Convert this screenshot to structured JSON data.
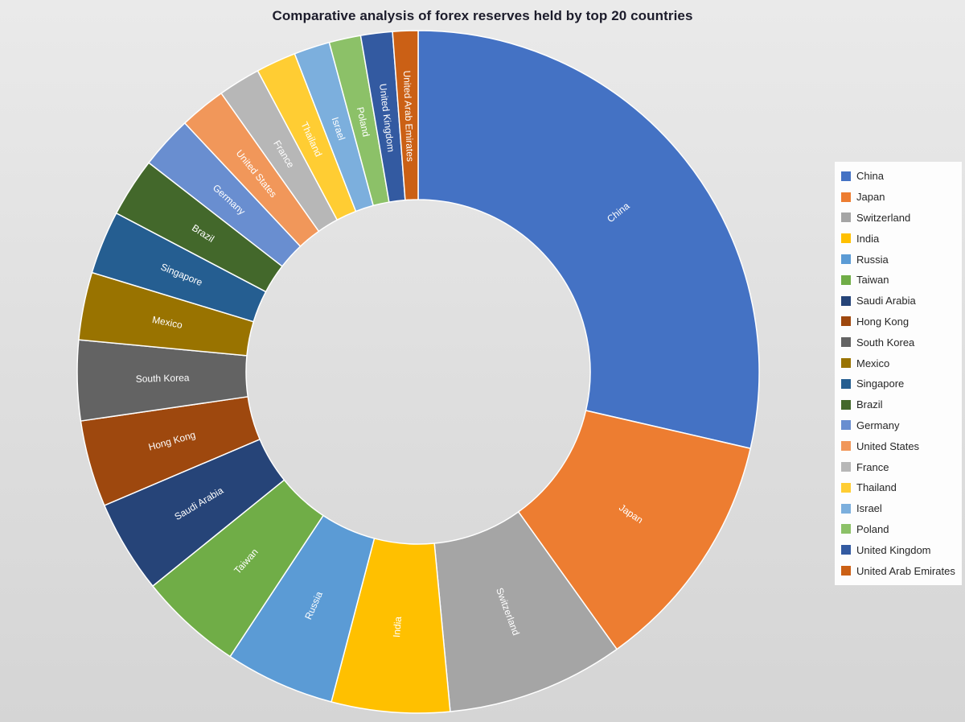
{
  "chart_data": {
    "type": "pie",
    "subtype": "doughnut",
    "title": "Comparative analysis of forex reserves held by top 20 countries",
    "categories": [
      "China",
      "Japan",
      "Switzerland",
      "India",
      "Russia",
      "Taiwan",
      "Saudi Arabia",
      "Hong Kong",
      "South Korea",
      "Mexico",
      "Singapore",
      "Brazil",
      "Germany",
      "United States",
      "France",
      "Thailand",
      "Israel",
      "Poland",
      "United Kingdom",
      "United Arab Emirates"
    ],
    "values": [
      28.6,
      11.5,
      8.4,
      5.6,
      5.2,
      4.9,
      4.4,
      4.1,
      3.8,
      3.2,
      3.0,
      2.8,
      2.5,
      2.2,
      2.0,
      1.9,
      1.7,
      1.5,
      1.5,
      1.2
    ],
    "values_unit": "percent share, estimated from arc angles",
    "colors": [
      "#4472C4",
      "#ED7D31",
      "#A5A5A5",
      "#FFC000",
      "#5B9BD5",
      "#70AD47",
      "#264478",
      "#9E480E",
      "#636363",
      "#997300",
      "#255E91",
      "#43682B",
      "#698ED0",
      "#F1975A",
      "#B7B7B7",
      "#FFCD33",
      "#7CAFDD",
      "#8CC168",
      "#335AA1",
      "#CB6015"
    ],
    "label_color": "#FFFFFF",
    "legend_position": "right",
    "inner_radius_ratio": 0.505,
    "start_angle_deg": 0,
    "direction": "clockwise"
  }
}
